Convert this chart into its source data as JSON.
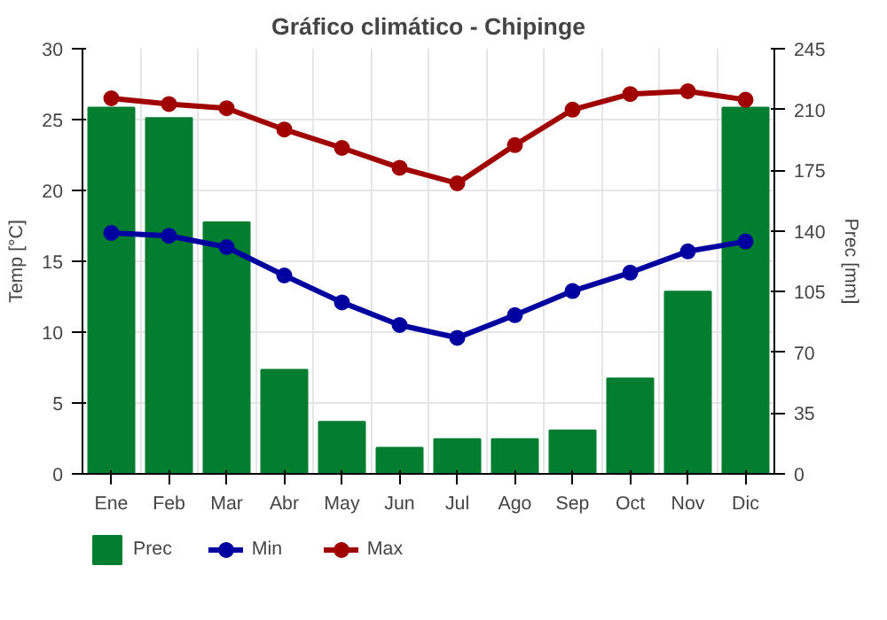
{
  "chart_data": {
    "type": "bar",
    "title": "Gráfico climático - Chipinge",
    "categories": [
      "Ene",
      "Feb",
      "Mar",
      "Abr",
      "May",
      "Jun",
      "Jul",
      "Ago",
      "Sep",
      "Oct",
      "Nov",
      "Dic"
    ],
    "series": [
      {
        "name": "Prec",
        "axis": "y2",
        "color": "#037d30",
        "values": [
          211,
          205,
          145,
          60,
          30,
          15,
          20,
          20,
          25,
          55,
          105,
          211
        ]
      },
      {
        "name": "Min",
        "type": "line",
        "color": "#0000a0",
        "values": [
          17.0,
          16.8,
          16.0,
          14.0,
          12.1,
          10.5,
          9.6,
          11.2,
          12.9,
          14.2,
          15.7,
          16.4
        ]
      },
      {
        "name": "Max",
        "type": "line",
        "color": "#a00000",
        "values": [
          26.5,
          26.1,
          25.8,
          24.3,
          23.0,
          21.6,
          20.5,
          23.2,
          25.7,
          26.8,
          27.0,
          26.4
        ]
      }
    ],
    "ylabel": "Temp [°C]",
    "y2label": "Prec [mm]",
    "ylim": [
      0,
      30
    ],
    "yticks": [
      0,
      5,
      10,
      15,
      20,
      25,
      30
    ],
    "y2lim": [
      0,
      245
    ],
    "y2ticks": [
      0,
      35,
      70,
      105,
      140,
      175,
      210,
      245
    ],
    "grid": true,
    "legend": "bottom",
    "marker": "circle"
  }
}
